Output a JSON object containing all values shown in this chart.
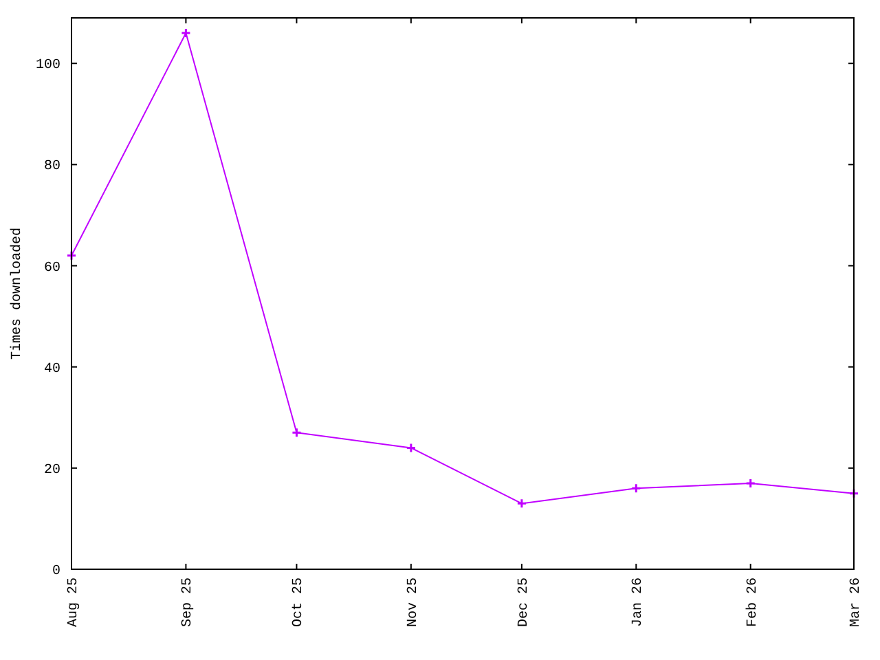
{
  "chart_data": {
    "type": "line",
    "ylabel": "Times downloaded",
    "x": [
      "2025-08",
      "2025-09",
      "2025-10",
      "2025-11",
      "2025-12",
      "2026-01",
      "2026-02",
      "2026-03"
    ],
    "values": [
      62,
      106,
      27,
      24,
      13,
      16,
      17,
      15
    ],
    "color": "#c000ff",
    "xlim": [
      "2025-08",
      "2026-03"
    ],
    "xticks": [
      {
        "value": "2025-08",
        "label": "Aug 25"
      },
      {
        "value": "2025-09",
        "label": "Sep 25"
      },
      {
        "value": "2025-10",
        "label": "Oct 25"
      },
      {
        "value": "2025-11",
        "label": "Nov 25"
      },
      {
        "value": "2025-12",
        "label": "Dec 25"
      },
      {
        "value": "2026-01",
        "label": "Jan 26"
      },
      {
        "value": "2026-02",
        "label": "Feb 26"
      },
      {
        "value": "2026-03",
        "label": "Mar 26"
      }
    ],
    "ylim": [
      0,
      109
    ],
    "yticks": [
      0,
      20,
      40,
      60,
      80,
      100
    ],
    "marker": "cross",
    "line_style": "solid"
  }
}
